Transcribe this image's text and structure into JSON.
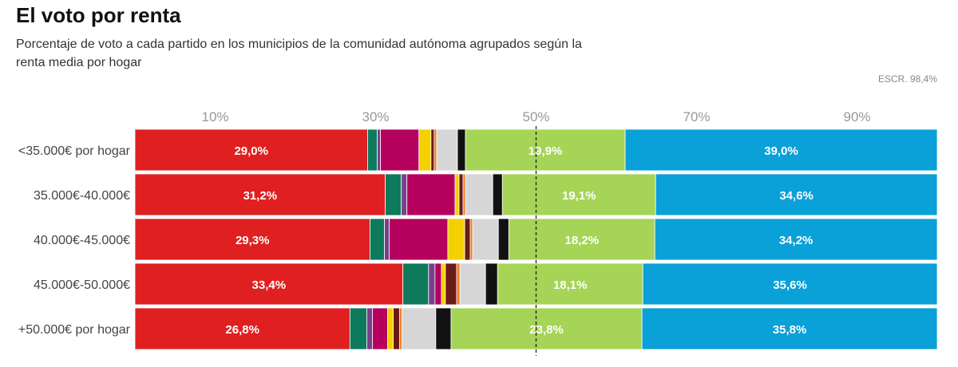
{
  "title": "El voto por renta",
  "subtitle": "Porcentaje de voto a cada partido en los municipios de la comunidad autónoma agrupados según la renta media por hogar",
  "note": "ESCR. 98,4%",
  "colors": {
    "red": "#e02020",
    "teal": "#0d7a5c",
    "purple": "#7a3f8c",
    "magenta": "#b5005e",
    "yellow": "#f5d000",
    "maroon": "#6b1a1a",
    "orange": "#f07a20",
    "gray": "#d6d6d6",
    "black": "#111111",
    "green": "#a6d456",
    "blue": "#0aa0d8"
  },
  "chart_data": {
    "type": "bar",
    "orientation": "horizontal",
    "stacked": true,
    "xlim": [
      0,
      100
    ],
    "xticks": [
      "10%",
      "30%",
      "50%",
      "70%",
      "90%"
    ],
    "xtick_values": [
      10,
      30,
      50,
      70,
      90
    ],
    "reference_line": 50,
    "categories": [
      "<35.000€ por hogar",
      "35.000€-40.000€",
      "40.000€-45.000€",
      "45.000€-50.000€",
      "+50.000€ por hogar"
    ],
    "rows": [
      {
        "label": "<35.000€ por hogar",
        "segments": [
          {
            "value": 29.0,
            "color": "red",
            "label": "29,0%"
          },
          {
            "value": 1.2,
            "color": "teal"
          },
          {
            "value": 0.4,
            "color": "purple"
          },
          {
            "value": 4.8,
            "color": "magenta"
          },
          {
            "value": 1.5,
            "color": "yellow"
          },
          {
            "value": 0.4,
            "color": "maroon"
          },
          {
            "value": 0.3,
            "color": "orange"
          },
          {
            "value": 2.6,
            "color": "gray"
          },
          {
            "value": 1.0,
            "color": "black"
          },
          {
            "value": 19.9,
            "color": "green",
            "label": "19,9%"
          },
          {
            "value": 39.0,
            "color": "blue",
            "label": "39,0%"
          }
        ]
      },
      {
        "label": "35.000€-40.000€",
        "segments": [
          {
            "value": 31.2,
            "color": "red",
            "label": "31,2%"
          },
          {
            "value": 2.0,
            "color": "teal"
          },
          {
            "value": 0.7,
            "color": "purple"
          },
          {
            "value": 6.0,
            "color": "magenta"
          },
          {
            "value": 0.5,
            "color": "yellow"
          },
          {
            "value": 0.5,
            "color": "maroon"
          },
          {
            "value": 0.3,
            "color": "orange"
          },
          {
            "value": 3.4,
            "color": "gray"
          },
          {
            "value": 1.2,
            "color": "black"
          },
          {
            "value": 19.1,
            "color": "green",
            "label": "19,1%"
          },
          {
            "value": 34.6,
            "color": "blue",
            "label": "34,6%"
          }
        ]
      },
      {
        "label": "40.000€-45.000€",
        "segments": [
          {
            "value": 29.3,
            "color": "red",
            "label": "29,3%"
          },
          {
            "value": 1.8,
            "color": "teal"
          },
          {
            "value": 0.6,
            "color": "purple"
          },
          {
            "value": 7.3,
            "color": "magenta"
          },
          {
            "value": 2.1,
            "color": "yellow"
          },
          {
            "value": 0.7,
            "color": "maroon"
          },
          {
            "value": 0.3,
            "color": "orange"
          },
          {
            "value": 3.2,
            "color": "gray"
          },
          {
            "value": 1.3,
            "color": "black"
          },
          {
            "value": 18.2,
            "color": "green",
            "label": "18,2%"
          },
          {
            "value": 34.2,
            "color": "blue",
            "label": "34,2%"
          }
        ]
      },
      {
        "label": "45.000€-50.000€",
        "segments": [
          {
            "value": 33.4,
            "color": "red",
            "label": "33,4%"
          },
          {
            "value": 3.2,
            "color": "teal"
          },
          {
            "value": 0.8,
            "color": "purple"
          },
          {
            "value": 0.8,
            "color": "magenta"
          },
          {
            "value": 0.5,
            "color": "yellow"
          },
          {
            "value": 1.4,
            "color": "maroon"
          },
          {
            "value": 0.4,
            "color": "orange"
          },
          {
            "value": 3.2,
            "color": "gray"
          },
          {
            "value": 1.5,
            "color": "black"
          },
          {
            "value": 18.1,
            "color": "green",
            "label": "18,1%"
          },
          {
            "value": 35.6,
            "color": "blue",
            "label": "35,6%"
          }
        ]
      },
      {
        "label": "+50.000€ por hogar",
        "segments": [
          {
            "value": 26.8,
            "color": "red",
            "label": "26,8%"
          },
          {
            "value": 2.1,
            "color": "teal"
          },
          {
            "value": 0.7,
            "color": "purple"
          },
          {
            "value": 1.9,
            "color": "magenta"
          },
          {
            "value": 0.7,
            "color": "yellow"
          },
          {
            "value": 0.8,
            "color": "maroon"
          },
          {
            "value": 0.3,
            "color": "orange"
          },
          {
            "value": 4.2,
            "color": "gray"
          },
          {
            "value": 1.9,
            "color": "black"
          },
          {
            "value": 23.8,
            "color": "green",
            "label": "23,8%"
          },
          {
            "value": 35.8,
            "color": "blue",
            "label": "35,8%"
          }
        ]
      }
    ]
  }
}
